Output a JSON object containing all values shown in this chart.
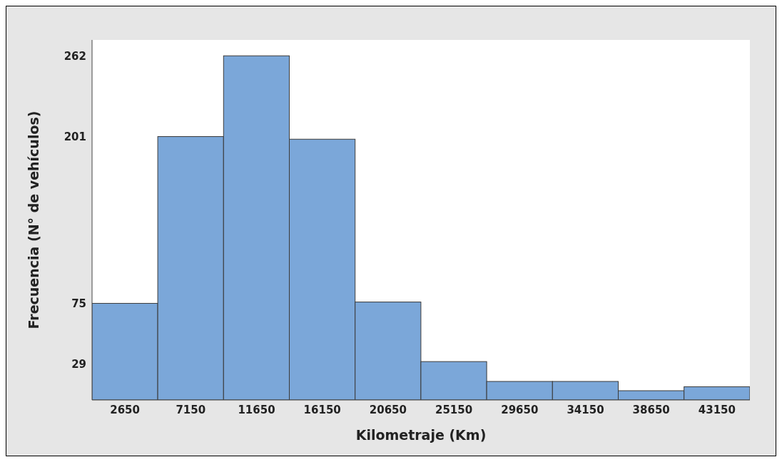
{
  "chart_data": {
    "type": "histogram",
    "xlabel": "Kilometraje (Km)",
    "ylabel": "Frecuencia (N° de vehículos)",
    "bins": [
      400,
      4900,
      9400,
      13900,
      18400,
      22900,
      27400,
      31900,
      36400,
      40900,
      45400
    ],
    "values": [
      75,
      201,
      262,
      199,
      76,
      31,
      16,
      16,
      9,
      12
    ],
    "color": "#7ba7d9",
    "xlim": [
      400,
      45400
    ],
    "xticks": [
      2650,
      7150,
      11650,
      16150,
      20650,
      25150,
      29650,
      34150,
      38650,
      43150
    ],
    "ylim": [
      2,
      274
    ],
    "yticks": [
      29,
      75,
      201,
      262
    ]
  }
}
